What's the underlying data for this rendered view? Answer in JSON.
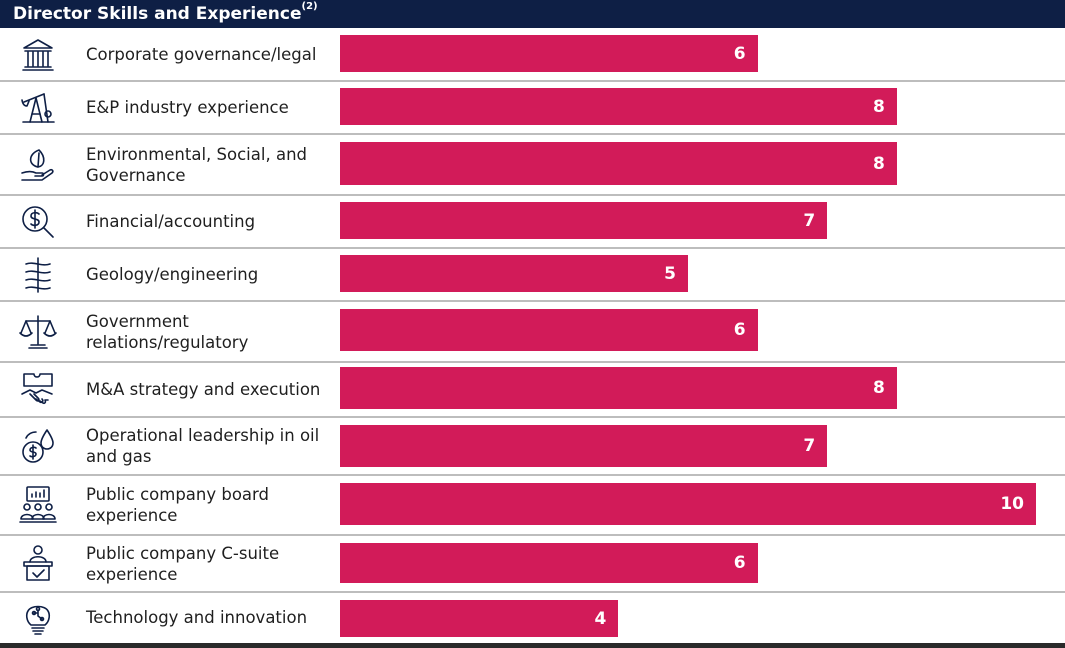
{
  "chart_data": {
    "type": "bar",
    "orientation": "horizontal",
    "title": "Director Skills and Experience",
    "title_superscript": "(2)",
    "categories": [
      "Corporate governance/legal",
      "E&P industry experience",
      "Environmental, Social, and Governance",
      "Financial/accounting",
      "Geology/engineering",
      "Government relations/regulatory",
      "M&A strategy and execution",
      "Operational leadership in oil and gas",
      "Public company board experience",
      "Public company C-suite experience",
      "Technology and innovation"
    ],
    "values": [
      6,
      8,
      8,
      7,
      5,
      6,
      8,
      7,
      10,
      6,
      4
    ],
    "xlim": [
      0,
      10
    ],
    "icons": [
      "courthouse-icon",
      "pumpjack-icon",
      "leaf-hand-icon",
      "dollar-magnifier-icon",
      "layers-drill-icon",
      "scales-icon",
      "handshake-puzzle-icon",
      "oil-drop-dollar-icon",
      "board-meeting-icon",
      "executive-podium-icon",
      "lightbulb-circuit-icon"
    ],
    "colors": {
      "bar": "#d21b59",
      "header": "#0e1f45",
      "value_text": "#ffffff"
    }
  }
}
